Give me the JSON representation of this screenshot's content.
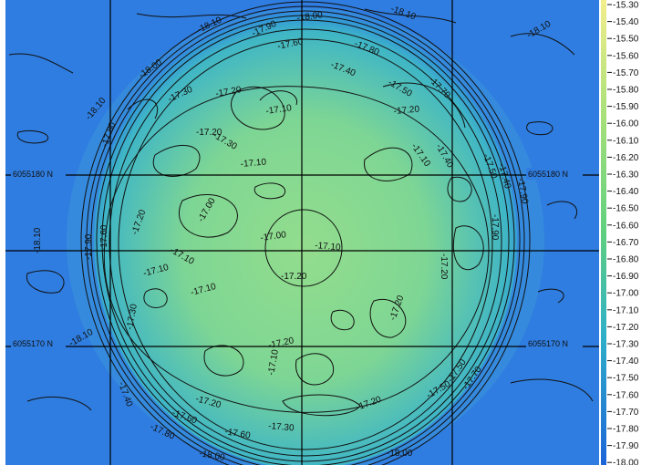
{
  "grid": {
    "northings": [
      "6055180 N",
      "6055170 N"
    ]
  },
  "contour_labels": [
    "-18.10",
    "-18.00",
    "-18.10",
    "-17.90",
    "-17.60",
    "-17.80",
    "-17.40",
    "-17.70",
    "-17.50",
    "-17.30",
    "-17.20",
    "-17.10",
    "-17.20",
    "-18.10",
    "-18.00",
    "-17.30",
    "-17.20",
    "-17.10",
    "-17.40",
    "-17.00",
    "-17.10",
    "-17.00",
    "-17.10",
    "-17.20",
    "-17.10",
    "-17.20",
    "-17.20",
    "-17.10",
    "-17.20",
    "-17.10",
    "-18.10",
    "-17.90",
    "-17.80",
    "-17.60",
    "-17.20",
    "-17.30",
    "-17.40",
    "-17.50",
    "-17.60",
    "-18.00",
    "-18.10",
    "-17.30",
    "-17.80",
    "-17.60",
    "-17.50",
    "-17.70",
    "-17.90",
    "-18.00",
    "-18.10",
    "-17.90",
    "-17.20",
    "-17.20",
    "-17.10",
    "-17.40",
    "-17.50"
  ],
  "legend": {
    "levels": [
      "-15.30",
      "-15.40",
      "-15.50",
      "-15.60",
      "-15.70",
      "-15.80",
      "-15.90",
      "-16.00",
      "-16.10",
      "-16.20",
      "-16.30",
      "-16.40",
      "-16.50",
      "-16.60",
      "-16.70",
      "-16.80",
      "-16.90",
      "-17.00",
      "-17.10",
      "-17.20",
      "-17.30",
      "-17.40",
      "-17.50",
      "-17.60",
      "-17.70",
      "-17.80",
      "-17.90",
      "-18.00"
    ],
    "color_top": "#f3ee8c",
    "color_mid": "#5fd07f",
    "color_low": "#2fb0c8",
    "color_bottom": "#1c64d8"
  },
  "map_colors": {
    "background": "#2f7de0",
    "plateau_outer": "#3fb6c6",
    "plateau_inner": "#7ed694",
    "plateau_core": "#93dd8d"
  }
}
